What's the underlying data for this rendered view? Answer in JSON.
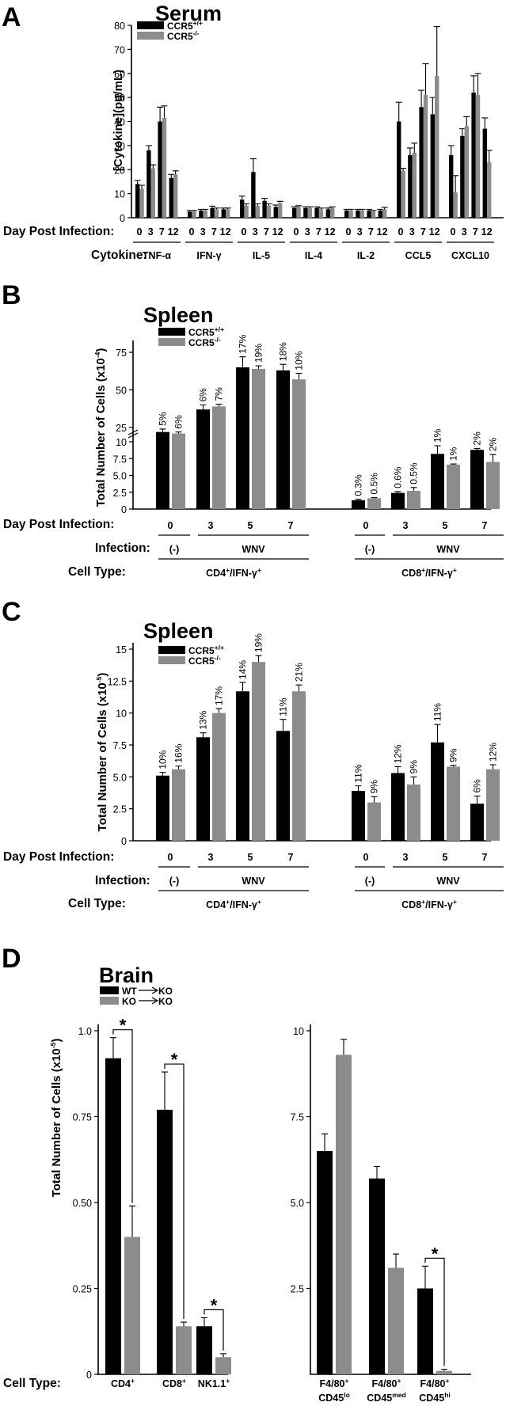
{
  "colors": {
    "ko_series": "#8c8c8c",
    "wt_series": "#000000"
  },
  "panels": [
    {
      "letter": "A",
      "title": "Serum",
      "type": "bar",
      "ylabel": "[Cytokine](pg/mL)",
      "ylim": [
        0,
        80
      ],
      "yticks": [
        "0",
        "10",
        "20",
        "30",
        "40",
        "50",
        "60",
        "70",
        "80"
      ],
      "legend": [
        {
          "name": "CCR5",
          "sup": "+/+",
          "color": "#000000"
        },
        {
          "name": "CCR5",
          "sup": "-/-",
          "color": "#8c8c8c"
        }
      ],
      "rows": [
        {
          "label": "Day Post Infection:",
          "groups_days": [
            "0",
            "3",
            "7",
            "12"
          ]
        },
        {
          "label": "Cytokine:",
          "groups": [
            "TNF-α",
            "IFN-γ",
            "IL-5",
            "IL-4",
            "IL-2",
            "CCL5",
            "CXCL10"
          ]
        }
      ],
      "chart_data": {
        "type": "bar",
        "groups": [
          "TNF-α",
          "IFN-γ",
          "IL-5",
          "IL-4",
          "IL-2",
          "CCL5",
          "CXCL10"
        ],
        "days": [
          "0",
          "3",
          "7",
          "12"
        ],
        "series": [
          {
            "name": "CCR5+/+",
            "values": [
              [
                14,
                28,
                40,
                16.5
              ],
              [
                2.5,
                3,
                4,
                3.5
              ],
              [
                7.5,
                19,
                7,
                4.5
              ],
              [
                4,
                4,
                4,
                3.5
              ],
              [
                3,
                3,
                3,
                3
              ],
              [
                40,
                26,
                46,
                43
              ],
              [
                26,
                34,
                52,
                37
              ]
            ],
            "errors": [
              [
                1.5,
                2,
                6,
                1.5
              ],
              [
                0.5,
                0.5,
                0.8,
                0.5
              ],
              [
                1.5,
                5.5,
                1,
                0.8
              ],
              [
                0.5,
                0.5,
                0.5,
                0.5
              ],
              [
                0.5,
                0.5,
                0.5,
                0.5
              ],
              [
                8,
                3,
                7,
                7
              ],
              [
                4,
                3,
                7,
                4.5
              ]
            ]
          },
          {
            "name": "CCR5-/-",
            "values": [
              [
                12,
                20.5,
                41.5,
                18
              ],
              [
                2.5,
                3,
                3.5,
                3.5
              ],
              [
                5,
                5,
                5,
                6
              ],
              [
                4.5,
                4,
                3.5,
                4
              ],
              [
                3,
                3,
                2.5,
                3.5
              ],
              [
                19.5,
                27,
                51,
                59
              ],
              [
                10.5,
                38,
                51,
                23
              ]
            ],
            "errors": [
              [
                1.5,
                1.5,
                5,
                1.5
              ],
              [
                0.5,
                0.5,
                0.5,
                0.5
              ],
              [
                0.8,
                0.8,
                0.8,
                0.8
              ],
              [
                0.5,
                0.5,
                0.5,
                0.5
              ],
              [
                0.5,
                0.5,
                0.5,
                0.8
              ],
              [
                1,
                4,
                13,
                20.5
              ],
              [
                7,
                4,
                9,
                5
              ]
            ]
          }
        ]
      }
    },
    {
      "letter": "B",
      "title": "Spleen",
      "type": "bar",
      "ylabel": "Total Number of Cells (x10",
      "ylabel_sup": "-4",
      "ylabel_end": ")",
      "yticks": [
        "0",
        "2.5",
        "5.0",
        "7.5",
        "10",
        "25",
        "50",
        "75"
      ],
      "axis_break": true,
      "legend": [
        {
          "name": "CCR5",
          "sup": "+/+",
          "color": "#000000"
        },
        {
          "name": "CCR5",
          "sup": "-/-",
          "color": "#8c8c8c"
        }
      ],
      "rows": [
        {
          "label": "Day Post Infection:",
          "ticks": [
            "0",
            "3",
            "5",
            "7",
            "0",
            "3",
            "5",
            "7"
          ]
        },
        {
          "label": "Infection:",
          "ticks": [
            "(-)",
            "WNV",
            "(-)",
            "WNV"
          ]
        },
        {
          "label": "Cell Type:",
          "ticks": [
            "CD4",
            "CD8"
          ],
          "sup": [
            "+",
            "+"
          ],
          "suffix": "/IFN-γ",
          "suffix_sup": "+"
        }
      ],
      "chart_data": {
        "type": "bar",
        "categories": [
          "CD4+/IFN-γ+ d0",
          "CD4+/IFN-γ+ d3",
          "CD4+/IFN-γ+ d5",
          "CD4+/IFN-γ+ d7",
          "CD8+/IFN-γ+ d0",
          "CD8+/IFN-γ+ d3",
          "CD8+/IFN-γ+ d5",
          "CD8+/IFN-γ+ d7"
        ],
        "series": [
          {
            "name": "CCR5+/+",
            "values": [
              22,
              37,
              65,
              63,
              1.3,
              2.4,
              8.2,
              8.8
            ],
            "errors": [
              2,
              3,
              7,
              4,
              0.15,
              0.2,
              1.2,
              2.2
            ],
            "labels": [
              "5%",
              "6%",
              "17%",
              "18%",
              "0.3%",
              "0.6%",
              "1%",
              "2%"
            ]
          },
          {
            "name": "CCR5-/-",
            "values": [
              21,
              39,
              64,
              57,
              1.6,
              2.7,
              6.6,
              7.0
            ],
            "errors": [
              1,
              1.5,
              2,
              4,
              0.1,
              0.5,
              0.1,
              1.1
            ],
            "labels": [
              "6%",
              "7%",
              "19%",
              "10%",
              "0.5%",
              "0.5%",
              "1%",
              "2%"
            ]
          }
        ]
      }
    },
    {
      "letter": "C",
      "title": "Spleen",
      "type": "bar",
      "ylabel": "Total Number of Cells (x10",
      "ylabel_sup": "-5",
      "ylabel_end": ")",
      "ylim": [
        0,
        15
      ],
      "yticks": [
        "0",
        "2.5",
        "5.0",
        "7.5",
        "10",
        "12.5",
        "15"
      ],
      "legend": [
        {
          "name": "CCR5",
          "sup": "+/+",
          "color": "#000000"
        },
        {
          "name": "CCR5",
          "sup": "-/-",
          "color": "#8c8c8c"
        }
      ],
      "rows": [
        {
          "label": "Day Post Infection:",
          "ticks": [
            "0",
            "3",
            "5",
            "7",
            "0",
            "3",
            "5",
            "7"
          ]
        },
        {
          "label": "Infection:",
          "ticks": [
            "(-)",
            "WNV",
            "(-)",
            "WNV"
          ]
        },
        {
          "label": "Cell Type:",
          "ticks": [
            "CD4",
            "CD8"
          ],
          "sup": [
            "+",
            "+"
          ],
          "suffix": "/IFN-γ",
          "suffix_sup": "+"
        }
      ],
      "chart_data": {
        "type": "bar",
        "categories": [
          "CD4+/IFN-γ+ d0",
          "CD4+/IFN-γ+ d3",
          "CD4+/IFN-γ+ d5",
          "CD4+/IFN-γ+ d7",
          "CD8+/IFN-γ+ d0",
          "CD8+/IFN-γ+ d3",
          "CD8+/IFN-γ+ d5",
          "CD8+/IFN-γ+ d7"
        ],
        "series": [
          {
            "name": "CCR5+/+",
            "values": [
              5.1,
              8.1,
              11.7,
              8.6,
              3.9,
              5.3,
              7.7,
              2.9
            ],
            "errors": [
              0.25,
              0.35,
              0.7,
              0.9,
              0.4,
              0.5,
              1.4,
              0.6
            ],
            "labels": [
              "10%",
              "13%",
              "14%",
              "11%",
              "11%",
              "12%",
              "11%",
              "6%"
            ]
          },
          {
            "name": "CCR5-/-",
            "values": [
              5.6,
              10.0,
              14.0,
              11.7,
              3.0,
              4.4,
              5.8,
              5.6
            ],
            "errors": [
              0.25,
              0.35,
              0.5,
              0.5,
              0.45,
              0.6,
              0.1,
              0.35
            ],
            "labels": [
              "16%",
              "17%",
              "19%",
              "21%",
              "9%",
              "9%",
              "9%",
              "12%"
            ]
          }
        ]
      }
    },
    {
      "letter": "D",
      "title": "Brain",
      "type": "bar",
      "ylabel": "Total Number of Cells (x10",
      "ylabel_sup": "-5",
      "ylabel_end": ")",
      "legend": [
        {
          "name_from": "WT",
          "name_to": "KO",
          "color": "#000000"
        },
        {
          "name_from": "KO",
          "name_to": "KO",
          "color": "#8c8c8c"
        }
      ],
      "row_label": "Cell Type:",
      "significance": "*",
      "chart_data": [
        {
          "type": "bar",
          "ylim": [
            0,
            1.0
          ],
          "yticks": [
            "0",
            "0.25",
            "0.50",
            "0.75",
            "1.0"
          ],
          "categories": [
            "CD4+",
            "CD8+",
            "NK1.1+"
          ],
          "cat_labels": [
            {
              "base": "CD4",
              "sup": "+"
            },
            {
              "base": "CD8",
              "sup": "+"
            },
            {
              "base": "NK1.1",
              "sup": "+"
            }
          ],
          "series": [
            {
              "name": "WT→KO",
              "values": [
                0.92,
                0.77,
                0.14
              ],
              "errors": [
                0.06,
                0.11,
                0.025
              ]
            },
            {
              "name": "KO→KO",
              "values": [
                0.4,
                0.14,
                0.05
              ],
              "errors": [
                0.09,
                0.012,
                0.01
              ]
            }
          ],
          "significant": [
            true,
            true,
            true
          ]
        },
        {
          "type": "bar",
          "ylim": [
            0,
            10
          ],
          "yticks": [
            "2.5",
            "5.0",
            "7.5",
            "10"
          ],
          "categories": [
            "F4/80+ CD45lo",
            "F4/80+ CD45med",
            "F4/80+ CD45hi"
          ],
          "cat_labels": [
            {
              "base": "F4/80",
              "sup": "+",
              "base2": "CD45",
              "sup2": "lo"
            },
            {
              "base": "F4/80",
              "sup": "+",
              "base2": "CD45",
              "sup2": "med"
            },
            {
              "base": "F4/80",
              "sup": "+",
              "base2": "CD45",
              "sup2": "hi"
            }
          ],
          "series": [
            {
              "name": "WT→KO",
              "values": [
                6.5,
                5.7,
                2.5
              ],
              "errors": [
                0.5,
                0.35,
                0.65
              ]
            },
            {
              "name": "KO→KO",
              "values": [
                9.3,
                3.1,
                0.1
              ],
              "errors": [
                0.45,
                0.4,
                0.05
              ]
            }
          ],
          "significant": [
            false,
            false,
            true
          ]
        }
      ]
    }
  ]
}
